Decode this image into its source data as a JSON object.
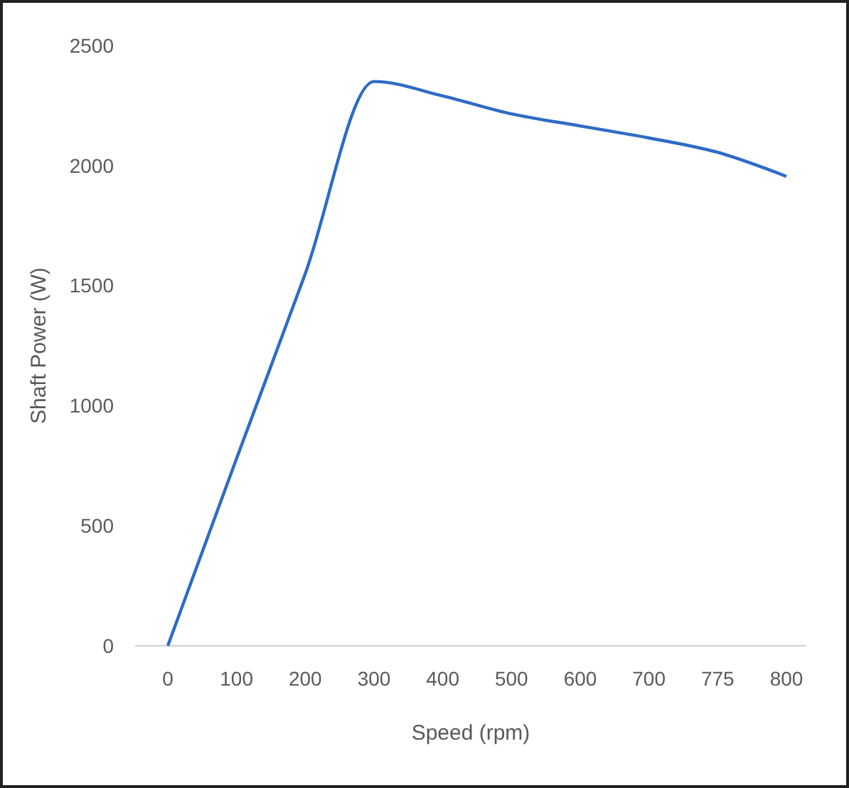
{
  "chart_data": {
    "type": "line",
    "xlabel": "Speed (rpm)",
    "ylabel": "Shaft Power (W)",
    "categories": [
      "0",
      "100",
      "200",
      "300",
      "400",
      "500",
      "600",
      "700",
      "775",
      "800"
    ],
    "series": [
      {
        "color": "#2e6bc6",
        "values": [
          0,
          780,
          1550,
          2350,
          2290,
          2215,
          2165,
          2115,
          2055,
          1955
        ]
      }
    ],
    "ylim": [
      0,
      2500
    ],
    "yticks": [
      0,
      500,
      1000,
      1500,
      2000,
      2500
    ],
    "grid": false,
    "marker": "none",
    "line_style": "solid"
  }
}
